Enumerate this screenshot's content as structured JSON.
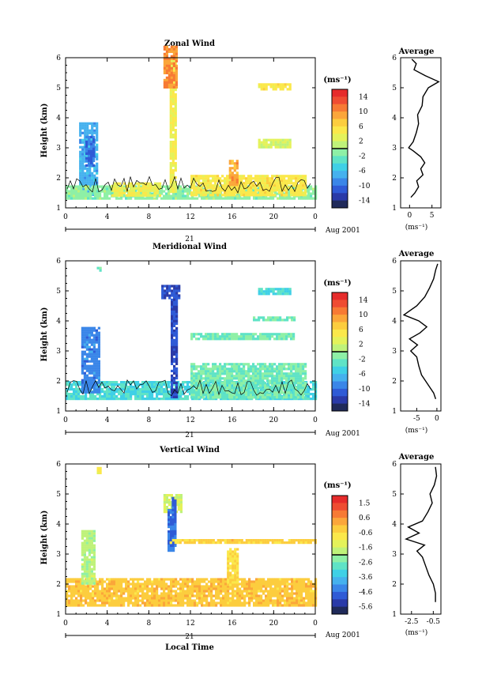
{
  "chart_data": [
    {
      "type": "heatmap",
      "title": "Zonal Wind",
      "ylabel": "Height (km)",
      "xlabel": "",
      "x_ticks": [
        "0",
        "4",
        "8",
        "12",
        "16",
        "20",
        "0"
      ],
      "y_ticks": [
        "1",
        "2",
        "3",
        "4",
        "5",
        "6"
      ],
      "xlim": [
        0,
        24
      ],
      "ylim": [
        1,
        6
      ],
      "date_day": "21",
      "date_label": "Aug 2001",
      "colorbar": {
        "unit": "(ms⁻¹)",
        "labels": [
          "14",
          "10",
          "6",
          "2",
          "-2",
          "-6",
          "-10",
          "-14"
        ],
        "min": -16,
        "max": 16
      },
      "blobs": [
        {
          "x": [
            1.3,
            3.1
          ],
          "y": [
            1.45,
            3.85
          ],
          "v": -7
        },
        {
          "x": [
            1.9,
            2.8
          ],
          "y": [
            2.4,
            3.4
          ],
          "v": -10
        },
        {
          "x": [
            0,
            24
          ],
          "y": [
            1.35,
            1.75
          ],
          "v": -1
        },
        {
          "x": [
            10.0,
            10.6
          ],
          "y": [
            1.5,
            6.0
          ],
          "v": 4
        },
        {
          "x": [
            9.4,
            10.6
          ],
          "y": [
            5.0,
            6.4
          ],
          "v": 10
        },
        {
          "x": [
            4.4,
            9.0
          ],
          "y": [
            1.4,
            1.85
          ],
          "v": 4
        },
        {
          "x": [
            12,
            23
          ],
          "y": [
            1.4,
            2.1
          ],
          "v": 5
        },
        {
          "x": [
            15.7,
            16.6
          ],
          "y": [
            1.8,
            2.6
          ],
          "v": 9
        },
        {
          "x": [
            18.5,
            21.5
          ],
          "y": [
            3.05,
            3.3
          ],
          "v": 2
        },
        {
          "x": [
            18.5,
            21.5
          ],
          "y": [
            4.98,
            5.15
          ],
          "v": 5
        }
      ],
      "profile": {
        "title": "Average",
        "xlabel": "(ms⁻¹)",
        "x_ticks": [
          "0",
          "5"
        ],
        "xlim": [
          -2,
          7
        ],
        "heights": [
          1.35,
          1.5,
          1.7,
          1.9,
          2.1,
          2.3,
          2.5,
          2.7,
          2.9,
          3.0,
          3.2,
          3.5,
          3.8,
          4.1,
          4.4,
          4.7,
          5.0,
          5.2,
          5.4,
          5.6,
          5.8,
          5.95
        ],
        "values": [
          0.3,
          1.2,
          2.0,
          1.6,
          3.0,
          2.5,
          3.4,
          2.5,
          0.8,
          -0.2,
          0.8,
          1.5,
          2.0,
          1.8,
          2.8,
          3.0,
          4.2,
          6.5,
          3.5,
          1.0,
          1.5,
          0.5
        ]
      }
    },
    {
      "type": "heatmap",
      "title": "Meridional Wind",
      "ylabel": "Height (km)",
      "xlabel": "",
      "x_ticks": [
        "0",
        "4",
        "8",
        "12",
        "16",
        "20",
        "0"
      ],
      "y_ticks": [
        "1",
        "2",
        "3",
        "4",
        "5",
        "6"
      ],
      "xlim": [
        0,
        24
      ],
      "ylim": [
        1,
        6
      ],
      "date_day": "21",
      "date_label": "Aug 2001",
      "colorbar": {
        "unit": "(ms⁻¹)",
        "labels": [
          "14",
          "10",
          "6",
          "2",
          "-2",
          "-6",
          "-10",
          "-14"
        ],
        "min": -16,
        "max": 16
      },
      "blobs": [
        {
          "x": [
            0,
            24
          ],
          "y": [
            1.4,
            2.0
          ],
          "v": -4
        },
        {
          "x": [
            1.5,
            3.2
          ],
          "y": [
            1.6,
            3.8
          ],
          "v": -9
        },
        {
          "x": [
            10.1,
            10.7
          ],
          "y": [
            1.5,
            4.9
          ],
          "v": -12
        },
        {
          "x": [
            9.2,
            10.8
          ],
          "y": [
            4.8,
            5.2
          ],
          "v": -12
        },
        {
          "x": [
            12,
            23
          ],
          "y": [
            1.45,
            2.6
          ],
          "v": -2
        },
        {
          "x": [
            3,
            3.3
          ],
          "y": [
            5.65,
            5.8
          ],
          "v": -2
        },
        {
          "x": [
            18.5,
            21.5
          ],
          "y": [
            4.9,
            5.1
          ],
          "v": -4
        },
        {
          "x": [
            18,
            22
          ],
          "y": [
            4.0,
            4.15
          ],
          "v": -2
        },
        {
          "x": [
            12,
            22
          ],
          "y": [
            3.4,
            3.6
          ],
          "v": -2
        }
      ],
      "profile": {
        "title": "Average",
        "xlabel": "(ms⁻¹)",
        "x_ticks": [
          "-5",
          "0"
        ],
        "xlim": [
          -9,
          1
        ],
        "heights": [
          1.4,
          1.6,
          1.8,
          2.0,
          2.2,
          2.5,
          2.8,
          3.0,
          3.2,
          3.4,
          3.6,
          3.8,
          4.0,
          4.2,
          4.5,
          4.8,
          5.1,
          5.4,
          5.7,
          5.9
        ],
        "values": [
          -0.3,
          -0.8,
          -1.8,
          -2.8,
          -3.8,
          -4.5,
          -5.0,
          -6.5,
          -4.8,
          -6.8,
          -4.2,
          -2.5,
          -4.5,
          -8.2,
          -5.0,
          -3.0,
          -1.8,
          -0.8,
          -0.3,
          0.2
        ]
      }
    },
    {
      "type": "heatmap",
      "title": "Vertical Wind",
      "ylabel": "Height (km)",
      "xlabel": "Local Time",
      "x_ticks": [
        "0",
        "4",
        "8",
        "12",
        "16",
        "20",
        "0"
      ],
      "y_ticks": [
        "1",
        "2",
        "3",
        "4",
        "5",
        "6"
      ],
      "xlim": [
        0,
        24
      ],
      "ylim": [
        1,
        6
      ],
      "date_day": "21",
      "date_label": "Aug 2001",
      "colorbar": {
        "unit": "(ms⁻¹)",
        "labels": [
          "1.5",
          "0.6",
          "-0.6",
          "-1.6",
          "-2.6",
          "-3.6",
          "-4.6",
          "-5.6"
        ],
        "min": -6,
        "max": 2
      },
      "blobs": [
        {
          "x": [
            0,
            24
          ],
          "y": [
            1.3,
            2.2
          ],
          "v": -0.2
        },
        {
          "x": [
            1.5,
            2.7
          ],
          "y": [
            2.0,
            3.8
          ],
          "v": -1.8
        },
        {
          "x": [
            9.4,
            11.1
          ],
          "y": [
            4.4,
            5.0
          ],
          "v": -1.4
        },
        {
          "x": [
            9.8,
            10.3
          ],
          "y": [
            3.1,
            4.5
          ],
          "v": -4.5
        },
        {
          "x": [
            10.2,
            10.5
          ],
          "y": [
            3.3,
            4.9
          ],
          "v": -4.6
        },
        {
          "x": [
            10.0,
            24
          ],
          "y": [
            3.4,
            3.5
          ],
          "v": -0.3
        },
        {
          "x": [
            15.5,
            16.6
          ],
          "y": [
            2.0,
            3.2
          ],
          "v": -0.5
        },
        {
          "x": [
            3,
            3.3
          ],
          "y": [
            5.7,
            5.9
          ],
          "v": -0.8
        }
      ],
      "profile": {
        "title": "Average",
        "xlabel": "(ms⁻¹)",
        "x_ticks": [
          "-2.5",
          "-0.5"
        ],
        "xlim": [
          -3.5,
          0.2
        ],
        "heights": [
          1.4,
          1.7,
          2.0,
          2.3,
          2.6,
          2.9,
          3.1,
          3.3,
          3.5,
          3.7,
          3.9,
          4.1,
          4.4,
          4.7,
          5.0,
          5.3,
          5.6,
          5.9
        ],
        "values": [
          -0.3,
          -0.3,
          -0.5,
          -0.9,
          -1.2,
          -1.5,
          -2.0,
          -1.3,
          -3.0,
          -1.8,
          -2.8,
          -1.5,
          -1.0,
          -0.6,
          -0.8,
          -0.4,
          -0.2,
          -0.3
        ]
      }
    }
  ]
}
